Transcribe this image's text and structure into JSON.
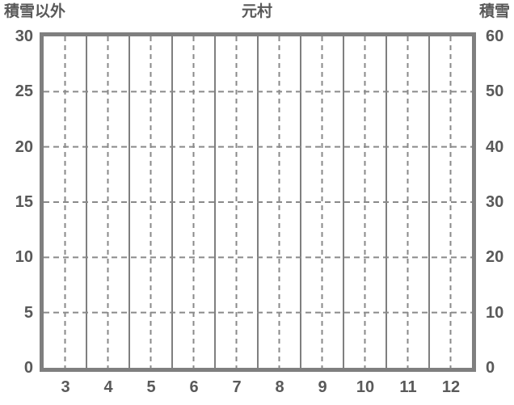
{
  "chart_data": {
    "type": "line",
    "title": "元村",
    "series": [],
    "x_axis": {
      "ticks": [
        3,
        4,
        5,
        6,
        7,
        8,
        9,
        10,
        11,
        12
      ],
      "n_slots": 10
    },
    "left_axis": {
      "title": "積雪以外",
      "ticks": [
        30,
        25,
        20,
        15,
        10,
        5,
        0
      ],
      "lim": [
        0,
        30
      ]
    },
    "right_axis": {
      "title": "積雪",
      "ticks": [
        60,
        50,
        40,
        30,
        20,
        10,
        0
      ],
      "lim": [
        0,
        60
      ]
    },
    "grid": true,
    "legend": false,
    "plot_area_empty": true
  },
  "colors": {
    "border": "#7f7f7f",
    "grid": "#8a8a8a",
    "text": "#595959",
    "background": "#ffffff"
  }
}
